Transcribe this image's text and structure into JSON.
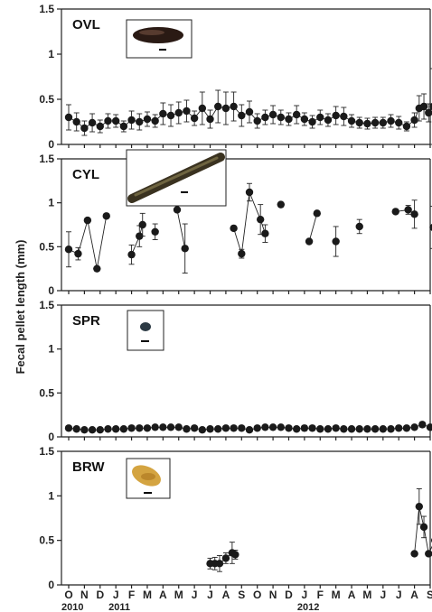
{
  "ylabel": "Fecal pellet length (mm)",
  "months": [
    "O",
    "N",
    "D",
    "J",
    "F",
    "M",
    "A",
    "M",
    "J",
    "J",
    "A",
    "S",
    "O",
    "N",
    "D",
    "J",
    "F",
    "M",
    "A",
    "M",
    "J",
    "J",
    "A",
    "S"
  ],
  "years": [
    "2010",
    "2011",
    "2012"
  ],
  "chart_data": [
    {
      "type": "scatter",
      "panel": "OVL",
      "ylim": [
        0,
        1.5
      ],
      "yticks": [
        "0",
        "0.5",
        "1",
        "1.5"
      ],
      "segments": [
        [
          [
            0,
            0.3,
            0.14
          ],
          [
            0.5,
            0.25,
            0.1
          ],
          [
            1.0,
            0.18,
            0.08
          ],
          [
            1.5,
            0.24,
            0.1
          ],
          [
            2.0,
            0.2,
            0.07
          ],
          [
            2.5,
            0.26,
            0.08
          ],
          [
            3.0,
            0.26,
            0.07
          ],
          [
            3.5,
            0.2,
            0.06
          ],
          [
            4.0,
            0.27,
            0.1
          ],
          [
            4.5,
            0.25,
            0.09
          ],
          [
            5.0,
            0.28,
            0.08
          ],
          [
            5.5,
            0.26,
            0.07
          ],
          [
            6.0,
            0.34,
            0.12
          ],
          [
            6.5,
            0.32,
            0.12
          ],
          [
            7.0,
            0.35,
            0.12
          ],
          [
            7.5,
            0.37,
            0.12
          ],
          [
            8.0,
            0.29,
            0.08
          ],
          [
            8.5,
            0.4,
            0.18
          ],
          [
            9.0,
            0.28,
            0.1
          ],
          [
            9.5,
            0.42,
            0.18
          ],
          [
            10.0,
            0.4,
            0.18
          ],
          [
            10.5,
            0.42,
            0.16
          ],
          [
            11.0,
            0.32,
            0.12
          ],
          [
            11.5,
            0.36,
            0.12
          ],
          [
            12.0,
            0.26,
            0.08
          ],
          [
            12.5,
            0.3,
            0.08
          ],
          [
            13.0,
            0.33,
            0.1
          ],
          [
            13.5,
            0.3,
            0.08
          ],
          [
            14.0,
            0.28,
            0.07
          ],
          [
            14.5,
            0.33,
            0.1
          ],
          [
            15.0,
            0.28,
            0.07
          ],
          [
            15.5,
            0.25,
            0.07
          ],
          [
            16.0,
            0.3,
            0.08
          ],
          [
            16.5,
            0.27,
            0.07
          ],
          [
            17.0,
            0.32,
            0.1
          ],
          [
            17.5,
            0.31,
            0.1
          ],
          [
            18.0,
            0.26,
            0.07
          ],
          [
            18.5,
            0.24,
            0.06
          ],
          [
            19.0,
            0.23,
            0.06
          ],
          [
            19.5,
            0.24,
            0.06
          ],
          [
            20.0,
            0.24,
            0.06
          ],
          [
            20.5,
            0.26,
            0.07
          ],
          [
            21.0,
            0.24,
            0.07
          ],
          [
            21.5,
            0.2,
            0.05
          ],
          [
            22.0,
            0.27,
            0.08
          ],
          [
            22.3,
            0.4,
            0.14
          ],
          [
            22.6,
            0.42,
            0.14
          ],
          [
            22.9,
            0.35,
            0.1
          ],
          [
            23.2,
            0.42,
            0.42
          ],
          [
            23.5,
            0.5,
            0.12
          ],
          [
            23.8,
            0.49,
            0.1
          ]
        ]
      ],
      "image_caption": "Fecal pellet image"
    },
    {
      "type": "scatter",
      "panel": "CYL",
      "ylim": [
        0,
        1.5
      ],
      "yticks": [
        "0",
        "0.5",
        "1",
        "1.5"
      ],
      "segments": [
        [
          [
            0,
            0.47,
            0.2
          ],
          [
            0.6,
            0.42,
            0.07
          ],
          [
            1.2,
            0.8,
            0
          ],
          [
            1.8,
            0.25,
            0
          ],
          [
            2.4,
            0.85,
            0
          ]
        ],
        [
          [
            4.0,
            0.41,
            0.11
          ],
          [
            4.5,
            0.62,
            0.12
          ],
          [
            4.7,
            0.75,
            0.13
          ]
        ],
        [
          [
            5.5,
            0.67,
            0.09
          ]
        ],
        [
          [
            6.9,
            0.92,
            0
          ],
          [
            7.4,
            0.48,
            0.28
          ]
        ],
        [
          [
            10.5,
            0.71,
            0
          ],
          [
            11.0,
            0.42,
            0.05
          ],
          [
            11.5,
            1.12,
            0.1
          ],
          [
            12.2,
            0.81,
            0.17
          ],
          [
            12.5,
            0.65,
            0.1
          ]
        ],
        [
          [
            13.5,
            0.98,
            0
          ]
        ],
        [
          [
            15.3,
            0.56,
            0
          ],
          [
            15.8,
            0.88,
            0
          ]
        ],
        [
          [
            17.0,
            0.56,
            0.17
          ]
        ],
        [
          [
            18.5,
            0.73,
            0.08
          ]
        ],
        [
          [
            20.8,
            0.9,
            0
          ],
          [
            21.6,
            0.92,
            0.05
          ],
          [
            22.0,
            0.87,
            0.16
          ]
        ],
        [
          [
            23.2,
            0.72,
            0.24
          ],
          [
            23.6,
            0.79,
            0.07
          ]
        ]
      ],
      "image_caption": "Fecal pellet image"
    },
    {
      "type": "scatter",
      "panel": "SPR",
      "ylim": [
        0,
        1.5
      ],
      "yticks": [
        "0",
        "0.5",
        "1",
        "1.5"
      ],
      "segments": [
        [
          [
            0,
            0.1,
            0.02
          ],
          [
            0.5,
            0.09,
            0.02
          ],
          [
            1.0,
            0.08,
            0.02
          ],
          [
            1.5,
            0.08,
            0.02
          ],
          [
            2.0,
            0.08,
            0.02
          ],
          [
            2.5,
            0.09,
            0.02
          ],
          [
            3.0,
            0.09,
            0.02
          ],
          [
            3.5,
            0.09,
            0.02
          ],
          [
            4.0,
            0.1,
            0.02
          ],
          [
            4.5,
            0.1,
            0.02
          ],
          [
            5.0,
            0.1,
            0.02
          ],
          [
            5.5,
            0.11,
            0.02
          ],
          [
            6.0,
            0.11,
            0.02
          ],
          [
            6.5,
            0.11,
            0.02
          ],
          [
            7.0,
            0.11,
            0.02
          ],
          [
            7.5,
            0.09,
            0.02
          ],
          [
            8.0,
            0.1,
            0.02
          ],
          [
            8.5,
            0.08,
            0.02
          ],
          [
            9.0,
            0.09,
            0.02
          ],
          [
            9.5,
            0.09,
            0.02
          ],
          [
            10.0,
            0.1,
            0.02
          ],
          [
            10.5,
            0.1,
            0.02
          ],
          [
            11.0,
            0.1,
            0.02
          ],
          [
            11.5,
            0.08,
            0.02
          ],
          [
            12.0,
            0.1,
            0.02
          ],
          [
            12.5,
            0.11,
            0.02
          ],
          [
            13.0,
            0.11,
            0.02
          ],
          [
            13.5,
            0.11,
            0.02
          ],
          [
            14.0,
            0.1,
            0.02
          ],
          [
            14.5,
            0.09,
            0.02
          ],
          [
            15.0,
            0.1,
            0.03
          ],
          [
            15.5,
            0.1,
            0.02
          ],
          [
            16.0,
            0.09,
            0.02
          ],
          [
            16.5,
            0.09,
            0.02
          ],
          [
            17.0,
            0.1,
            0.02
          ],
          [
            17.5,
            0.09,
            0.02
          ],
          [
            18.0,
            0.09,
            0.02
          ],
          [
            18.5,
            0.09,
            0.02
          ],
          [
            19.0,
            0.09,
            0.02
          ],
          [
            19.5,
            0.09,
            0.02
          ],
          [
            20.0,
            0.09,
            0.02
          ],
          [
            20.5,
            0.09,
            0.02
          ],
          [
            21.0,
            0.1,
            0.02
          ],
          [
            21.5,
            0.1,
            0.02
          ],
          [
            22.0,
            0.11,
            0.02
          ],
          [
            22.5,
            0.14,
            0.03
          ],
          [
            23.0,
            0.11,
            0.02
          ],
          [
            23.5,
            0.12,
            0.02
          ],
          [
            23.9,
            0.1,
            0.02
          ]
        ]
      ],
      "image_caption": "Fecal pellet image"
    },
    {
      "type": "scatter",
      "panel": "BRW",
      "ylim": [
        0,
        1.5
      ],
      "yticks": [
        "0",
        "0.5",
        "1",
        "1.5"
      ],
      "segments": [
        [
          [
            9.0,
            0.24,
            0.06
          ],
          [
            9.3,
            0.24,
            0.07
          ],
          [
            9.6,
            0.24,
            0.09
          ],
          [
            10.0,
            0.3,
            0.06
          ],
          [
            10.4,
            0.36,
            0.12
          ],
          [
            10.6,
            0.34,
            0.05
          ]
        ],
        [
          [
            22.0,
            0.35,
            0
          ],
          [
            22.3,
            0.88,
            0.2
          ],
          [
            22.6,
            0.65,
            0.12
          ],
          [
            22.9,
            0.35,
            0
          ],
          [
            23.3,
            0.5,
            0
          ],
          [
            23.7,
            0.66,
            0
          ]
        ]
      ],
      "image_caption": "Fecal pellet image"
    }
  ]
}
